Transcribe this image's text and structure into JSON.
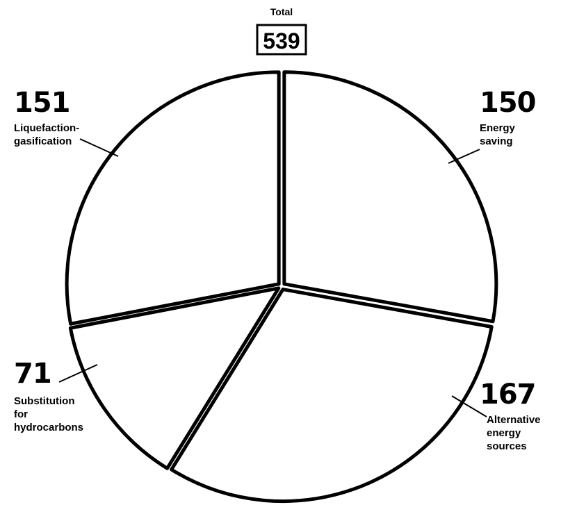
{
  "chart_data": {
    "type": "pie",
    "total_title": "Total",
    "total": 539,
    "categories": [
      "Energy\nsaving",
      "Alternative\nenergy\nsources",
      "Substitution\nfor\nhydrocarbons",
      "Liquefaction-\ngasification"
    ],
    "values": [
      150,
      167,
      71,
      151
    ]
  }
}
